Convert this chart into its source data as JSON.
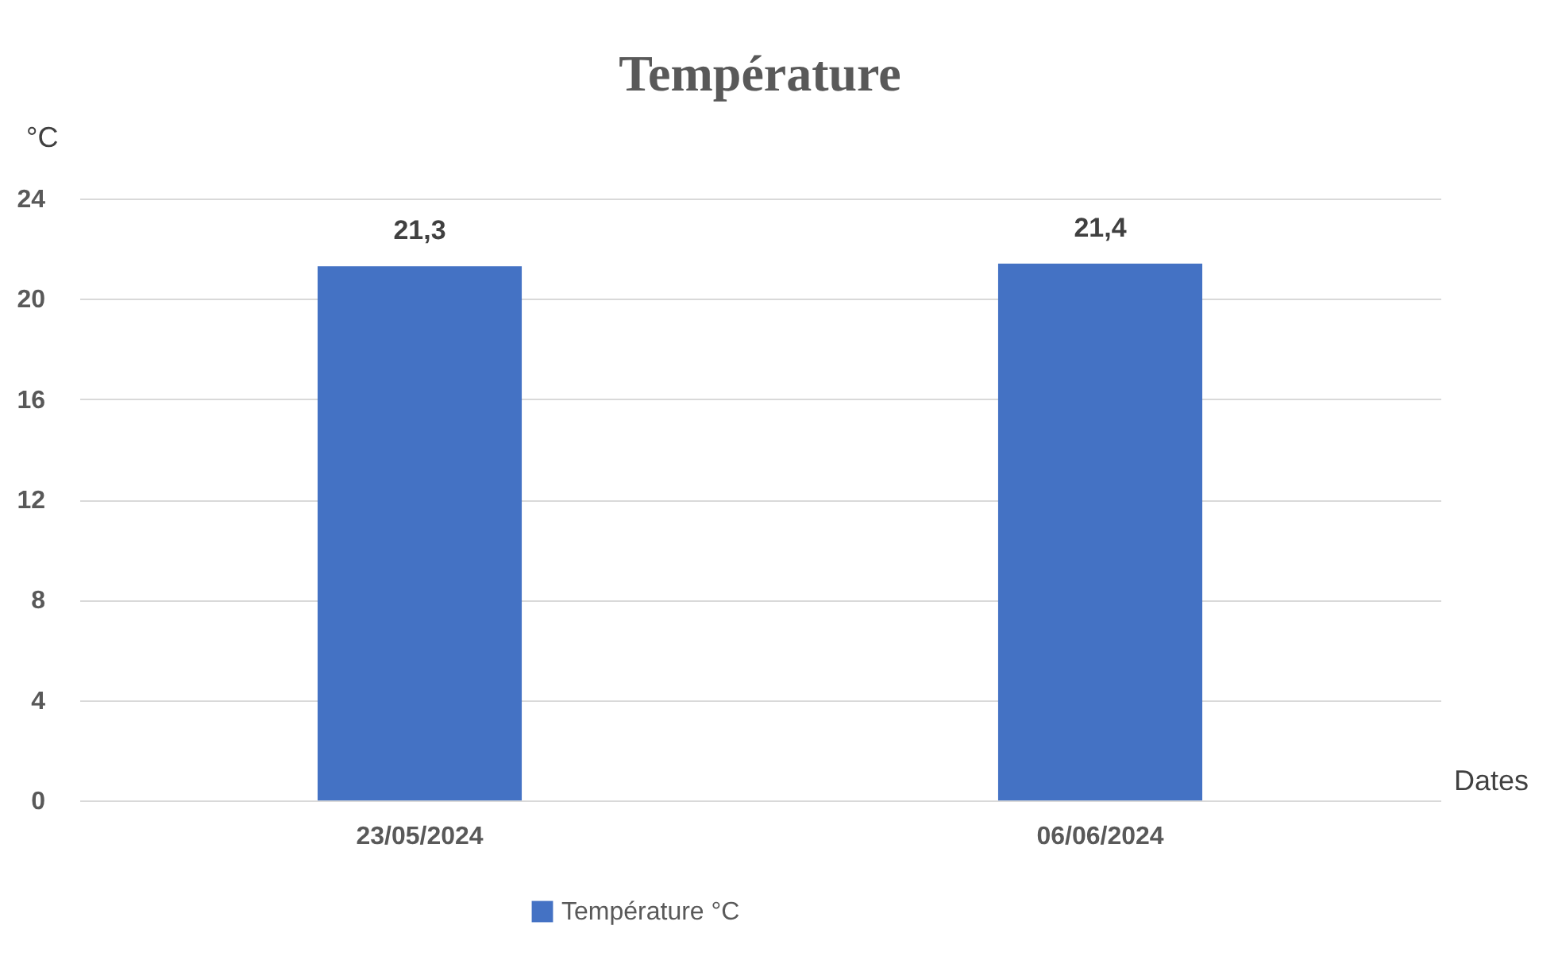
{
  "chart_data": {
    "type": "bar",
    "title": "Température",
    "xlabel": "Dates",
    "ylabel": "°C",
    "categories": [
      "23/05/2024",
      "06/06/2024"
    ],
    "series": [
      {
        "name": "Température °C",
        "color": "#4472c4",
        "values": [
          21.3,
          21.4
        ],
        "value_labels": [
          "21,3",
          "21,4"
        ]
      }
    ],
    "ylim": [
      0,
      24
    ],
    "yticks": [
      0,
      4,
      8,
      12,
      16,
      20,
      24
    ],
    "grid": "y",
    "legend": "bottom"
  }
}
